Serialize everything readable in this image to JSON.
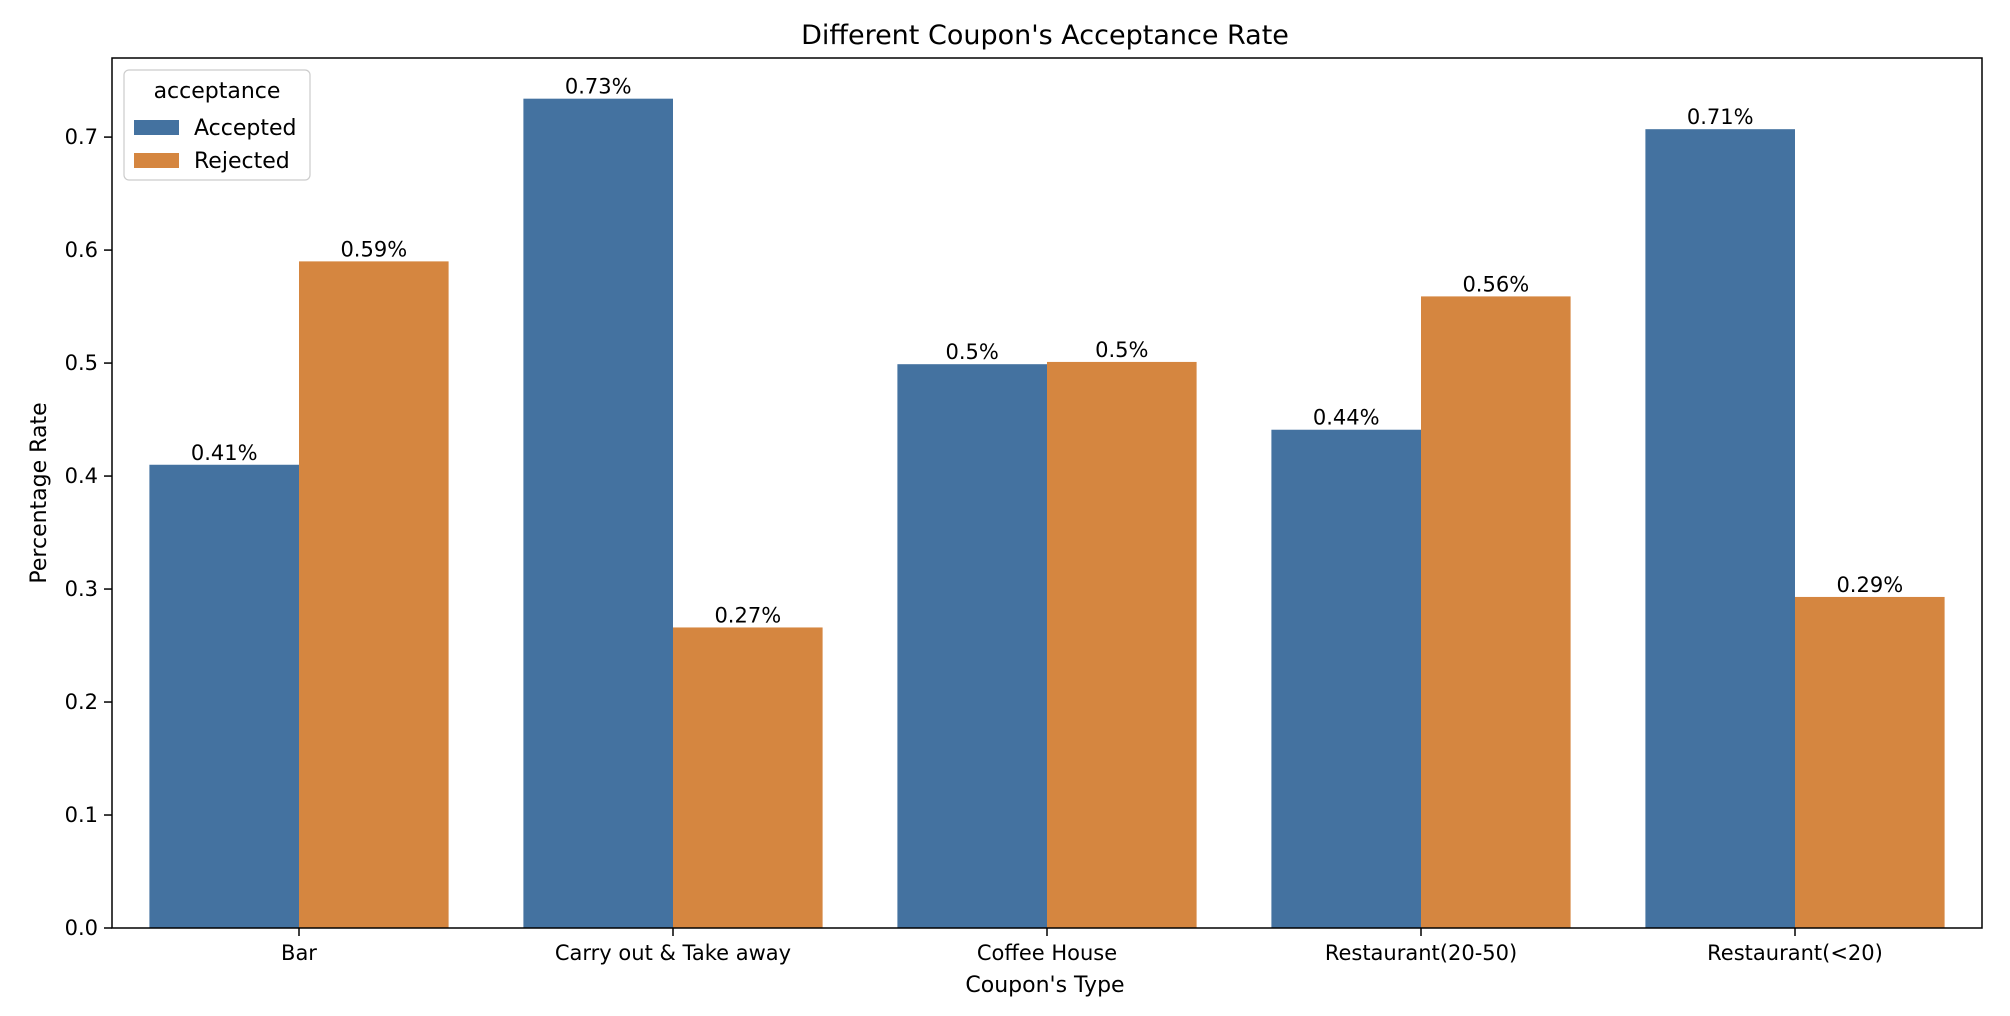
{
  "chart_data": {
    "type": "bar",
    "title": "Different Coupon's Acceptance Rate",
    "xlabel": "Coupon's Type",
    "ylabel": "Percentage Rate",
    "categories": [
      "Bar",
      "Carry out & Take away",
      "Coffee House",
      "Restaurant(20-50)",
      "Restaurant(<20)"
    ],
    "series": [
      {
        "name": "Accepted",
        "color": "#4472a0",
        "values": [
          0.41,
          0.734,
          0.499,
          0.441,
          0.707
        ],
        "labels": [
          "0.41%",
          "0.73%",
          "0.5%",
          "0.44%",
          "0.71%"
        ]
      },
      {
        "name": "Rejected",
        "color": "#d58640",
        "values": [
          0.59,
          0.266,
          0.501,
          0.559,
          0.293
        ],
        "labels": [
          "0.59%",
          "0.27%",
          "0.5%",
          "0.56%",
          "0.29%"
        ]
      }
    ],
    "ylim": [
      0,
      0.77
    ],
    "yticks": [
      0.0,
      0.1,
      0.2,
      0.3,
      0.4,
      0.5,
      0.6,
      0.7
    ],
    "ytick_labels": [
      "0.0",
      "0.1",
      "0.2",
      "0.3",
      "0.4",
      "0.5",
      "0.6",
      "0.7"
    ],
    "grid": false,
    "legend": {
      "title": "acceptance",
      "placement": "top-left"
    }
  }
}
